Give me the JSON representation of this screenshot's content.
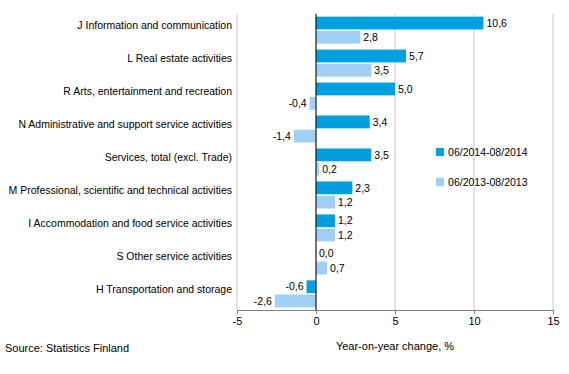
{
  "chart_data": {
    "type": "bar",
    "orientation": "horizontal",
    "categories": [
      "J Information and communication",
      "L Real estate activities",
      "R Arts, entertainment and recreation",
      "N Administrative and support service activities",
      "Services, total (excl. Trade)",
      "M Professional, scientific and technical activities",
      "I Accommodation and food service activities",
      "S Other service activities",
      "H Transportation and storage"
    ],
    "series": [
      {
        "name": "06/2014-08/2014",
        "color": "#00a0e0",
        "values": [
          10.6,
          5.7,
          5.0,
          3.4,
          3.5,
          2.3,
          1.2,
          0.0,
          -0.6
        ],
        "value_labels": [
          "10,6",
          "5,7",
          "5,0",
          "3,4",
          "3,5",
          "2,3",
          "1,2",
          "0,0",
          "-0,6"
        ]
      },
      {
        "name": "06/2013-08/2013",
        "color": "#9fcff5",
        "values": [
          2.8,
          3.5,
          -0.4,
          -1.4,
          0.2,
          1.2,
          1.2,
          0.7,
          -2.6
        ],
        "value_labels": [
          "2,8",
          "3,5",
          "-0,4",
          "-1,4",
          "0,2",
          "1,2",
          "1,2",
          "0,7",
          "-2,6"
        ]
      }
    ],
    "xlim": [
      -5,
      15
    ],
    "xticks": [
      -5,
      0,
      5,
      10,
      15
    ],
    "x_label": "Year-on-year change, %",
    "source": "Source: Statistics Finland",
    "grid": true,
    "legend": "right",
    "data_labels": true
  }
}
